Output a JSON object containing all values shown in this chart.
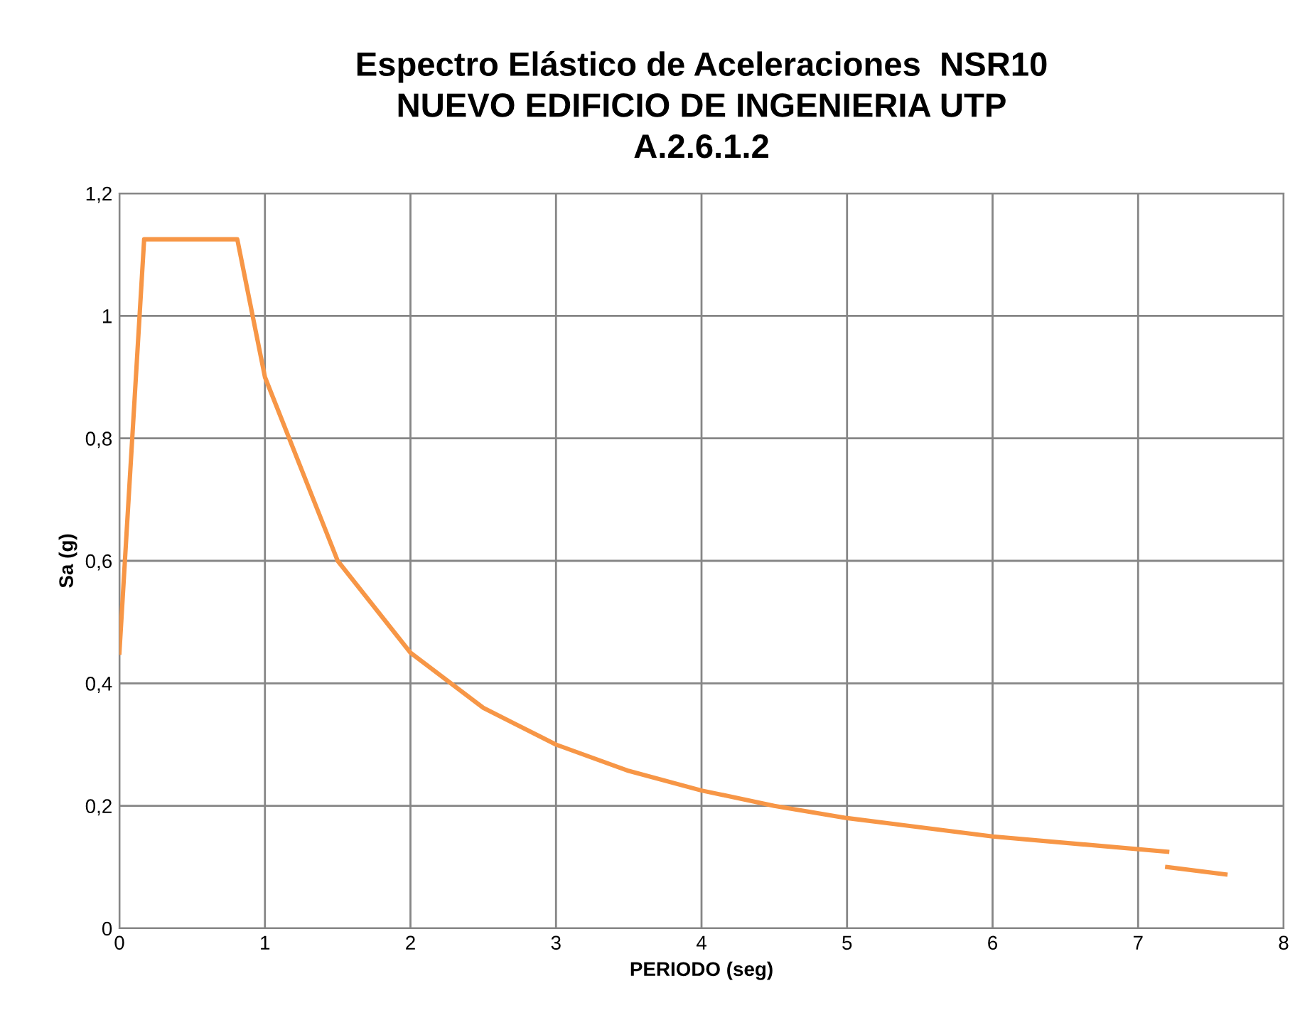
{
  "chart_data": {
    "type": "line",
    "title": "Espectro Elástico de Aceleraciones  NSR10\nNUEVO EDIFICIO DE INGENIERIA UTP\nA.2.6.1.2",
    "xlabel": "PERIODO (seg)",
    "ylabel": "Sa (g)",
    "series": [
      {
        "color": "#f79646",
        "x": [
          0,
          0.17,
          0.81,
          1,
          1.5,
          2,
          2.5,
          3,
          3.5,
          4,
          4.5,
          5,
          6,
          7.2
        ],
        "values": [
          0.45,
          1.125,
          1.125,
          0.9,
          0.6,
          0.45,
          0.36,
          0.3,
          0.257,
          0.225,
          0.2,
          0.18,
          0.15,
          0.125
        ]
      },
      {
        "color": "#f79646",
        "x": [
          7.2,
          7.6
        ],
        "values": [
          0.1,
          0.088
        ]
      }
    ],
    "xlim": [
      0,
      8
    ],
    "xticks": [
      0,
      1,
      2,
      3,
      4,
      5,
      6,
      7,
      8
    ],
    "ylim": [
      0,
      1.2
    ],
    "yticks": [
      0,
      {
        "value": 0.2,
        "label": "0,2"
      },
      {
        "value": 0.4,
        "label": "0,4"
      },
      {
        "value": 0.6,
        "label": "0,6"
      },
      {
        "value": 0.8,
        "label": "0,8"
      },
      1,
      {
        "value": 1.2,
        "label": "1,2"
      }
    ],
    "grid": true,
    "line_style": "solid",
    "marker": "none"
  }
}
